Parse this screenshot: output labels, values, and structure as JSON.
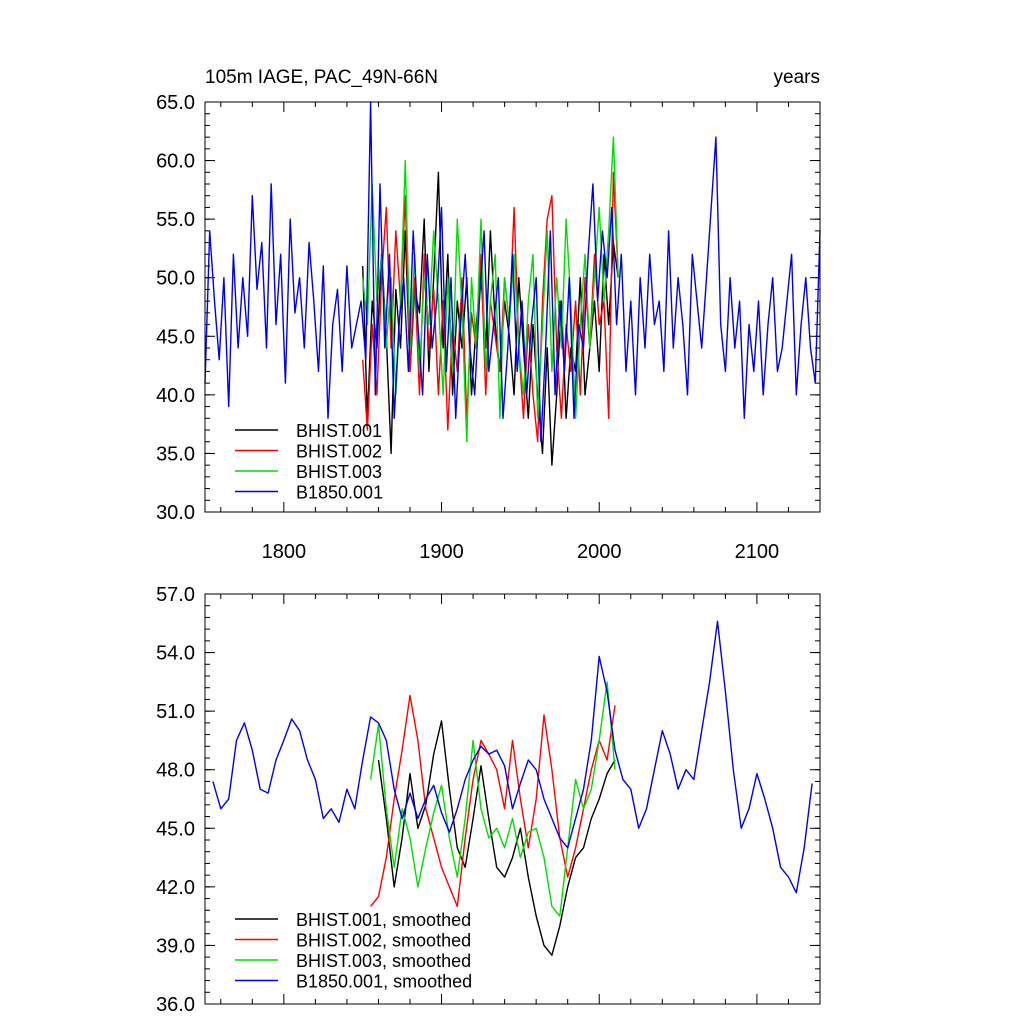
{
  "chart_data": [
    {
      "type": "line",
      "title": "105m IAGE, PAC_49N-66N",
      "title_right": "years",
      "xlim": [
        1750,
        2140
      ],
      "ylim": [
        30,
        65
      ],
      "x_ticks": [
        1800,
        1900,
        2000,
        2100
      ],
      "x_tick_labels": [
        "1800",
        "1900",
        "2000",
        "2100"
      ],
      "y_ticks": [
        30,
        35,
        40,
        45,
        50,
        55,
        60,
        65
      ],
      "y_tick_labels": [
        "30.0",
        "35.0",
        "40.0",
        "45.0",
        "50.0",
        "55.0",
        "60.0",
        "65.0"
      ],
      "legend_position": "bottom-left",
      "series": [
        {
          "name": "BHIST.001",
          "color": "#000000",
          "x": [
            1850,
            1853,
            1856,
            1859,
            1862,
            1865,
            1868,
            1871,
            1874,
            1877,
            1880,
            1883,
            1886,
            1889,
            1892,
            1895,
            1898,
            1901,
            1904,
            1907,
            1910,
            1913,
            1916,
            1919,
            1922,
            1925,
            1928,
            1931,
            1934,
            1937,
            1940,
            1943,
            1946,
            1949,
            1952,
            1955,
            1958,
            1961,
            1964,
            1967,
            1970,
            1973,
            1976,
            1979,
            1982,
            1985,
            1988,
            1991,
            1994,
            1997,
            2000,
            2003,
            2006,
            2009,
            2012
          ],
          "values": [
            51,
            38,
            48,
            44,
            52,
            45,
            35,
            49,
            44,
            54,
            42,
            49,
            47,
            55,
            42,
            50,
            59,
            44,
            52,
            40,
            48,
            44,
            50,
            40,
            46,
            50,
            44,
            54,
            46,
            42,
            48,
            45,
            40,
            50,
            44,
            38,
            46,
            40,
            35,
            44,
            34,
            40,
            48,
            38,
            44,
            42,
            50,
            40,
            44,
            48,
            42,
            52,
            46,
            53,
            50
          ]
        },
        {
          "name": "BHIST.002",
          "color": "#ff0000",
          "x": [
            1850,
            1853,
            1856,
            1859,
            1862,
            1865,
            1868,
            1871,
            1874,
            1877,
            1880,
            1883,
            1886,
            1889,
            1892,
            1895,
            1898,
            1901,
            1904,
            1907,
            1910,
            1913,
            1916,
            1919,
            1922,
            1925,
            1928,
            1931,
            1934,
            1937,
            1940,
            1943,
            1946,
            1949,
            1952,
            1955,
            1958,
            1961,
            1964,
            1967,
            1970,
            1973,
            1976,
            1979,
            1982,
            1985,
            1988,
            1991,
            1994,
            1997,
            2000,
            2003,
            2006,
            2009,
            2012
          ],
          "values": [
            43,
            37,
            46,
            40,
            50,
            56,
            44,
            54,
            48,
            57,
            42,
            50,
            40,
            52,
            44,
            49,
            40,
            48,
            37,
            46,
            42,
            50,
            38,
            47,
            44,
            52,
            40,
            48,
            45,
            42,
            50,
            46,
            56,
            44,
            38,
            46,
            40,
            36,
            48,
            55,
            57,
            44,
            38,
            46,
            42,
            48,
            40,
            50,
            44,
            52,
            46,
            48,
            38,
            59,
            50
          ]
        },
        {
          "name": "BHIST.003",
          "color": "#00dd00",
          "x": [
            1850,
            1853,
            1856,
            1859,
            1862,
            1865,
            1868,
            1871,
            1874,
            1877,
            1880,
            1883,
            1886,
            1889,
            1892,
            1895,
            1898,
            1901,
            1904,
            1907,
            1910,
            1913,
            1916,
            1919,
            1922,
            1925,
            1928,
            1931,
            1934,
            1937,
            1940,
            1943,
            1946,
            1949,
            1952,
            1955,
            1958,
            1961,
            1964,
            1967,
            1970,
            1973,
            1976,
            1979,
            1982,
            1985,
            1988,
            1991,
            1994,
            1997,
            2000,
            2003,
            2006,
            2009,
            2012
          ],
          "values": [
            50,
            46,
            58,
            48,
            52,
            44,
            50,
            40,
            48,
            60,
            44,
            52,
            42,
            50,
            46,
            54,
            48,
            40,
            50,
            42,
            55,
            47,
            36,
            50,
            44,
            55,
            42,
            48,
            52,
            38,
            50,
            46,
            52,
            44,
            40,
            48,
            52,
            38,
            46,
            54,
            42,
            50,
            44,
            55,
            48,
            38,
            46,
            52,
            44,
            50,
            56,
            48,
            54,
            62,
            50
          ]
        },
        {
          "name": "B1850.001",
          "color": "#0000ee",
          "x": [
            1750,
            1753,
            1756,
            1759,
            1762,
            1765,
            1768,
            1771,
            1774,
            1777,
            1780,
            1783,
            1786,
            1789,
            1792,
            1795,
            1798,
            1801,
            1804,
            1807,
            1810,
            1813,
            1816,
            1819,
            1822,
            1825,
            1828,
            1831,
            1834,
            1837,
            1840,
            1843,
            1846,
            1849,
            1852,
            1855,
            1858,
            1861,
            1864,
            1867,
            1870,
            1873,
            1876,
            1879,
            1882,
            1885,
            1888,
            1891,
            1894,
            1897,
            1900,
            1903,
            1906,
            1909,
            1912,
            1915,
            1918,
            1921,
            1924,
            1927,
            1930,
            1933,
            1936,
            1939,
            1942,
            1945,
            1948,
            1951,
            1954,
            1957,
            1960,
            1963,
            1966,
            1969,
            1972,
            1975,
            1978,
            1981,
            1984,
            1987,
            1990,
            1993,
            1996,
            1999,
            2002,
            2005,
            2008,
            2011,
            2014,
            2017,
            2020,
            2023,
            2026,
            2029,
            2032,
            2035,
            2038,
            2041,
            2044,
            2047,
            2050,
            2053,
            2056,
            2059,
            2062,
            2065,
            2068,
            2071,
            2074,
            2077,
            2080,
            2083,
            2086,
            2089,
            2092,
            2095,
            2098,
            2101,
            2104,
            2107,
            2110,
            2113,
            2116,
            2119,
            2122,
            2125,
            2128,
            2131,
            2134,
            2137,
            2140
          ],
          "values": [
            41,
            54,
            48,
            43,
            50,
            39,
            52,
            44,
            50,
            45,
            57,
            49,
            53,
            44,
            58,
            46,
            52,
            41,
            55,
            47,
            50,
            44,
            53,
            48,
            42,
            51,
            38,
            46,
            49,
            42,
            51,
            44,
            46,
            48,
            43,
            65,
            40,
            58,
            44,
            52,
            38,
            46,
            50,
            42,
            54,
            46,
            40,
            52,
            44,
            48,
            56,
            42,
            50,
            38,
            46,
            52,
            44,
            40,
            48,
            54,
            42,
            46,
            50,
            38,
            44,
            52,
            42,
            48,
            40,
            46,
            50,
            36,
            44,
            54,
            40,
            48,
            42,
            50,
            38,
            46,
            44,
            52,
            58,
            48,
            54,
            50,
            56,
            46,
            52,
            42,
            48,
            40,
            50,
            44,
            52,
            46,
            48,
            42,
            54,
            44,
            50,
            46,
            40,
            52,
            48,
            44,
            50,
            56,
            62,
            46,
            42,
            50,
            44,
            48,
            38,
            46,
            42,
            48,
            40,
            46,
            50,
            42,
            44,
            48,
            52,
            40,
            46,
            50,
            44,
            41,
            54
          ]
        }
      ]
    },
    {
      "type": "line",
      "xlim": [
        1750,
        2140
      ],
      "ylim": [
        36,
        57
      ],
      "x_ticks": [
        1800,
        1900,
        2000,
        2100
      ],
      "y_ticks": [
        36,
        39,
        42,
        45,
        48,
        51,
        54,
        57
      ],
      "y_tick_labels": [
        "36.0",
        "39.0",
        "42.0",
        "45.0",
        "48.0",
        "51.0",
        "54.0",
        "57.0"
      ],
      "legend_position": "bottom-left",
      "series": [
        {
          "name": "BHIST.001, smoothed",
          "color": "#000000",
          "x": [
            1860,
            1865,
            1870,
            1875,
            1880,
            1885,
            1890,
            1895,
            1900,
            1905,
            1910,
            1915,
            1920,
            1925,
            1930,
            1935,
            1940,
            1945,
            1950,
            1955,
            1960,
            1965,
            1970,
            1975,
            1980,
            1985,
            1990,
            1995,
            2000,
            2005,
            2010
          ],
          "values": [
            48.5,
            45.5,
            42.0,
            44.5,
            47.8,
            45.0,
            46.2,
            48.8,
            50.5,
            47.0,
            44.0,
            43.0,
            45.5,
            48.2,
            45.5,
            43.0,
            42.5,
            43.5,
            45.0,
            42.5,
            40.5,
            39.0,
            38.5,
            40.0,
            42.0,
            43.5,
            44.0,
            45.5,
            46.5,
            47.8,
            48.5
          ]
        },
        {
          "name": "BHIST.002, smoothed",
          "color": "#ff0000",
          "x": [
            1855,
            1860,
            1865,
            1870,
            1875,
            1880,
            1885,
            1890,
            1895,
            1900,
            1905,
            1910,
            1915,
            1920,
            1925,
            1930,
            1935,
            1940,
            1945,
            1950,
            1955,
            1960,
            1965,
            1970,
            1975,
            1980,
            1985,
            1990,
            1995,
            2000,
            2005,
            2010
          ],
          "values": [
            41.0,
            41.5,
            43.5,
            46.5,
            49.0,
            51.8,
            49.5,
            46.0,
            44.5,
            43.0,
            42.0,
            41.0,
            44.5,
            47.5,
            49.5,
            48.8,
            48.0,
            46.0,
            49.5,
            46.5,
            44.0,
            46.5,
            50.8,
            48.0,
            44.5,
            42.5,
            44.0,
            46.0,
            48.0,
            49.5,
            48.5,
            51.3
          ]
        },
        {
          "name": "BHIST.003, smoothed",
          "color": "#00dd00",
          "x": [
            1855,
            1860,
            1865,
            1870,
            1875,
            1880,
            1885,
            1890,
            1895,
            1900,
            1905,
            1910,
            1915,
            1920,
            1925,
            1930,
            1935,
            1940,
            1945,
            1950,
            1955,
            1960,
            1965,
            1970,
            1975,
            1980,
            1985,
            1990,
            1995,
            2000,
            2005,
            2010
          ],
          "values": [
            47.5,
            50.3,
            46.0,
            43.0,
            46.0,
            44.5,
            42.0,
            44.0,
            45.8,
            47.2,
            44.5,
            42.5,
            45.5,
            49.5,
            46.0,
            44.5,
            45.0,
            44.0,
            45.5,
            43.5,
            44.8,
            45.0,
            43.5,
            41.0,
            40.5,
            44.0,
            47.5,
            46.0,
            47.0,
            49.5,
            52.5,
            48.0
          ]
        },
        {
          "name": "B1850.001, smoothed",
          "color": "#0000ee",
          "x": [
            1755,
            1760,
            1765,
            1770,
            1775,
            1780,
            1785,
            1790,
            1795,
            1800,
            1805,
            1810,
            1815,
            1820,
            1825,
            1830,
            1835,
            1840,
            1845,
            1850,
            1855,
            1860,
            1865,
            1870,
            1875,
            1880,
            1885,
            1890,
            1895,
            1900,
            1905,
            1910,
            1915,
            1920,
            1925,
            1930,
            1935,
            1940,
            1945,
            1950,
            1955,
            1960,
            1965,
            1970,
            1975,
            1980,
            1985,
            1990,
            1995,
            2000,
            2005,
            2010,
            2015,
            2020,
            2025,
            2030,
            2035,
            2040,
            2045,
            2050,
            2055,
            2060,
            2065,
            2070,
            2075,
            2080,
            2085,
            2090,
            2095,
            2100,
            2105,
            2110,
            2115,
            2120,
            2125,
            2130,
            2135
          ],
          "values": [
            47.4,
            46.0,
            46.5,
            49.5,
            50.4,
            49.0,
            47.0,
            46.8,
            48.5,
            49.5,
            50.6,
            50.0,
            48.5,
            47.5,
            45.5,
            46.0,
            45.3,
            47.0,
            46.0,
            48.5,
            50.7,
            50.4,
            49.5,
            47.0,
            45.5,
            46.8,
            45.5,
            46.5,
            47.2,
            45.8,
            44.8,
            46.0,
            47.5,
            48.5,
            49.2,
            48.8,
            49.0,
            48.2,
            46.0,
            47.3,
            48.5,
            48.0,
            46.5,
            45.5,
            44.5,
            44.0,
            45.5,
            47.0,
            49.5,
            53.8,
            52.0,
            49.0,
            47.5,
            47.0,
            45.0,
            46.0,
            48.0,
            50.0,
            48.8,
            47.0,
            48.0,
            47.5,
            50.0,
            52.5,
            55.6,
            52.0,
            48.0,
            45.0,
            46.0,
            47.8,
            46.5,
            45.0,
            43.0,
            42.5,
            41.7,
            44.0,
            47.3
          ]
        }
      ]
    }
  ]
}
